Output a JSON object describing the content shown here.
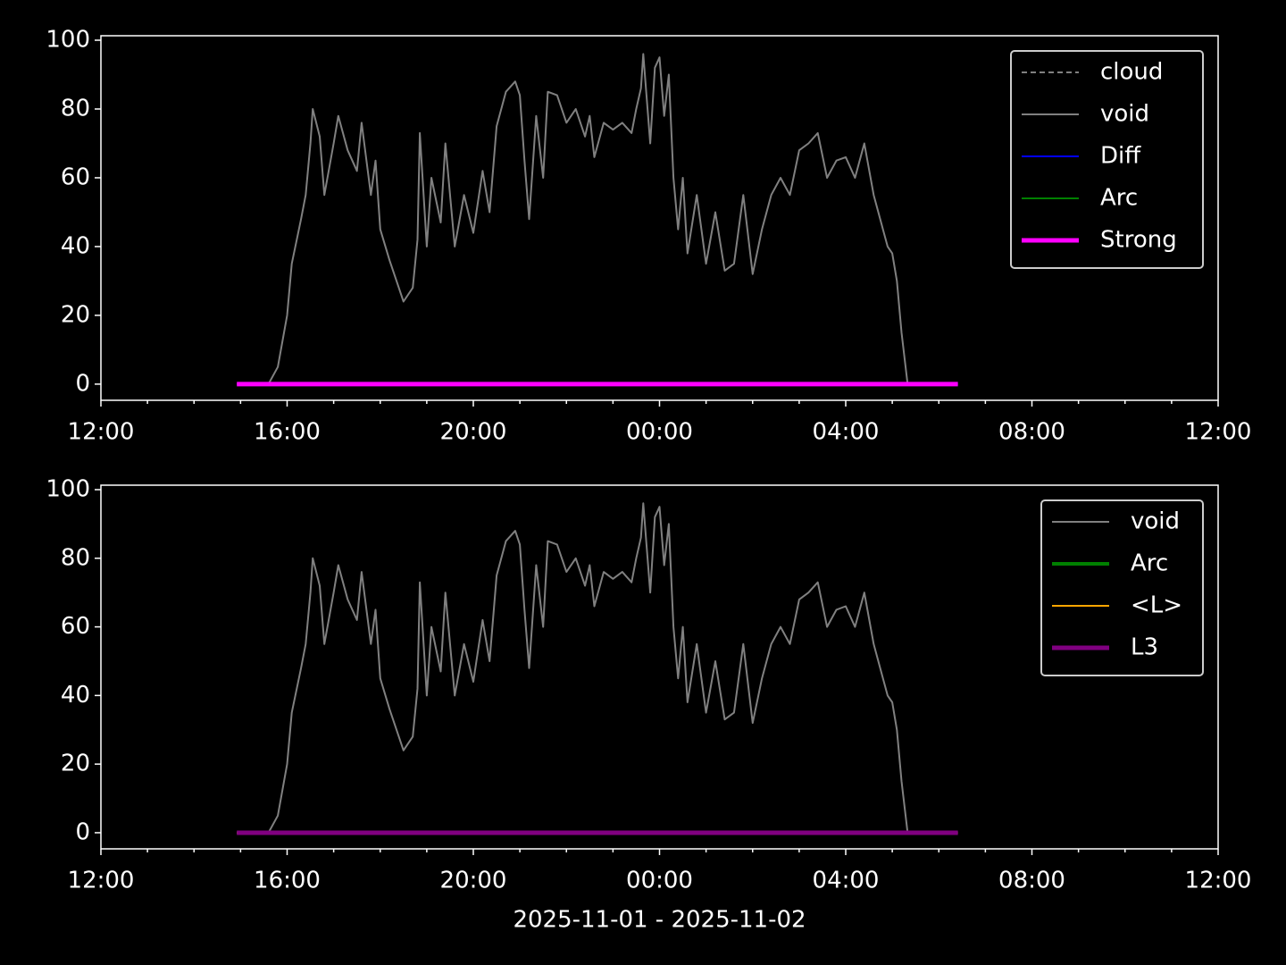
{
  "chart_data": [
    {
      "type": "line",
      "legend": "upper right",
      "xlim": [
        12,
        36
      ],
      "ylim": [
        -4.7,
        101.3
      ],
      "xticks": [
        {
          "value": 12,
          "label": "12:00"
        },
        {
          "value": 16,
          "label": "16:00"
        },
        {
          "value": 20,
          "label": "20:00"
        },
        {
          "value": 24,
          "label": "00:00"
        },
        {
          "value": 28,
          "label": "04:00"
        },
        {
          "value": 32,
          "label": "08:00"
        },
        {
          "value": 36,
          "label": "12:00"
        }
      ],
      "xminorticks": [
        13,
        14,
        15,
        17,
        18,
        19,
        21,
        22,
        23,
        25,
        26,
        27,
        29,
        30,
        31,
        33,
        34,
        35
      ],
      "yticks": [
        0,
        20,
        40,
        60,
        80,
        100
      ],
      "series": [
        {
          "name": "cloud",
          "color": "#808080",
          "dashed": true,
          "x": [],
          "values": []
        },
        {
          "name": "void",
          "color": "#808080",
          "x": [
            15.6,
            15.8,
            16.0,
            16.1,
            16.3,
            16.4,
            16.5,
            16.55,
            16.7,
            16.8,
            17.0,
            17.1,
            17.3,
            17.5,
            17.6,
            17.8,
            17.9,
            18.0,
            18.2,
            18.4,
            18.5,
            18.7,
            18.8,
            18.85,
            19.0,
            19.1,
            19.3,
            19.4,
            19.6,
            19.8,
            20.0,
            20.2,
            20.35,
            20.5,
            20.7,
            20.9,
            21.0,
            21.1,
            21.2,
            21.35,
            21.5,
            21.6,
            21.8,
            22.0,
            22.2,
            22.4,
            22.5,
            22.6,
            22.8,
            23.0,
            23.2,
            23.4,
            23.5,
            23.6,
            23.65,
            23.8,
            23.9,
            24.0,
            24.1,
            24.2,
            24.3,
            24.4,
            24.5,
            24.6,
            24.8,
            25.0,
            25.2,
            25.4,
            25.6,
            25.8,
            26.0,
            26.2,
            26.4,
            26.6,
            26.8,
            27.0,
            27.2,
            27.4,
            27.6,
            27.8,
            28.0,
            28.2,
            28.4,
            28.6,
            28.8,
            28.9,
            29.0,
            29.1,
            29.2,
            29.33
          ],
          "values": [
            0,
            5,
            20,
            35,
            48,
            55,
            70,
            80,
            72,
            55,
            70,
            78,
            68,
            62,
            76,
            55,
            65,
            45,
            36,
            28,
            24,
            28,
            42,
            73,
            40,
            60,
            47,
            70,
            40,
            55,
            44,
            62,
            50,
            75,
            85,
            88,
            84,
            65,
            48,
            78,
            60,
            85,
            84,
            76,
            80,
            72,
            78,
            66,
            76,
            74,
            76,
            73,
            80,
            86,
            96,
            70,
            92,
            95,
            78,
            90,
            60,
            45,
            60,
            38,
            55,
            35,
            50,
            33,
            35,
            55,
            32,
            45,
            55,
            60,
            55,
            68,
            70,
            73,
            60,
            65,
            66,
            60,
            70,
            55,
            45,
            40,
            38,
            30,
            15,
            0
          ]
        },
        {
          "name": "Diff",
          "color": "#0000ff",
          "x": [
            14.92,
            30.41
          ],
          "values": [
            0,
            0
          ]
        },
        {
          "name": "Arc",
          "color": "#008000",
          "x": [
            14.92,
            30.41
          ],
          "values": [
            0,
            0
          ]
        },
        {
          "name": "Strong",
          "color": "#ff00ff",
          "x": [
            14.92,
            30.41
          ],
          "values": [
            0,
            0
          ]
        }
      ]
    },
    {
      "type": "line",
      "legend": "upper right",
      "xlabel": "2025-11-01 - 2025-11-02",
      "xlim": [
        12,
        36
      ],
      "ylim": [
        -4.7,
        101.3
      ],
      "xticks": [
        {
          "value": 12,
          "label": "12:00"
        },
        {
          "value": 16,
          "label": "16:00"
        },
        {
          "value": 20,
          "label": "20:00"
        },
        {
          "value": 24,
          "label": "00:00"
        },
        {
          "value": 28,
          "label": "04:00"
        },
        {
          "value": 32,
          "label": "08:00"
        },
        {
          "value": 36,
          "label": "12:00"
        }
      ],
      "xminorticks": [
        13,
        14,
        15,
        17,
        18,
        19,
        21,
        22,
        23,
        25,
        26,
        27,
        29,
        30,
        31,
        33,
        34,
        35
      ],
      "yticks": [
        0,
        20,
        40,
        60,
        80,
        100
      ],
      "series": [
        {
          "name": "void",
          "color": "#808080",
          "x": [
            15.6,
            15.8,
            16.0,
            16.1,
            16.3,
            16.4,
            16.5,
            16.55,
            16.7,
            16.8,
            17.0,
            17.1,
            17.3,
            17.5,
            17.6,
            17.8,
            17.9,
            18.0,
            18.2,
            18.4,
            18.5,
            18.7,
            18.8,
            18.85,
            19.0,
            19.1,
            19.3,
            19.4,
            19.6,
            19.8,
            20.0,
            20.2,
            20.35,
            20.5,
            20.7,
            20.9,
            21.0,
            21.1,
            21.2,
            21.35,
            21.5,
            21.6,
            21.8,
            22.0,
            22.2,
            22.4,
            22.5,
            22.6,
            22.8,
            23.0,
            23.2,
            23.4,
            23.5,
            23.6,
            23.65,
            23.8,
            23.9,
            24.0,
            24.1,
            24.2,
            24.3,
            24.4,
            24.5,
            24.6,
            24.8,
            25.0,
            25.2,
            25.4,
            25.6,
            25.8,
            26.0,
            26.2,
            26.4,
            26.6,
            26.8,
            27.0,
            27.2,
            27.4,
            27.6,
            27.8,
            28.0,
            28.2,
            28.4,
            28.6,
            28.8,
            28.9,
            29.0,
            29.1,
            29.2,
            29.33
          ],
          "values": [
            0,
            5,
            20,
            35,
            48,
            55,
            70,
            80,
            72,
            55,
            70,
            78,
            68,
            62,
            76,
            55,
            65,
            45,
            36,
            28,
            24,
            28,
            42,
            73,
            40,
            60,
            47,
            70,
            40,
            55,
            44,
            62,
            50,
            75,
            85,
            88,
            84,
            65,
            48,
            78,
            60,
            85,
            84,
            76,
            80,
            72,
            78,
            66,
            76,
            74,
            76,
            73,
            80,
            86,
            96,
            70,
            92,
            95,
            78,
            90,
            60,
            45,
            60,
            38,
            55,
            35,
            50,
            33,
            35,
            55,
            32,
            45,
            55,
            60,
            55,
            68,
            70,
            73,
            60,
            65,
            66,
            60,
            70,
            55,
            45,
            40,
            38,
            30,
            15,
            0
          ]
        },
        {
          "name": "Arc",
          "color": "#008000",
          "x": [
            14.92,
            30.41
          ],
          "values": [
            0,
            0
          ]
        },
        {
          "name": "<L>",
          "color": "#ffa500",
          "x": [
            14.92,
            30.41
          ],
          "values": [
            0,
            0
          ]
        },
        {
          "name": "L3",
          "color": "#800080",
          "x": [
            14.92,
            30.41
          ],
          "values": [
            0,
            0
          ]
        }
      ]
    }
  ]
}
